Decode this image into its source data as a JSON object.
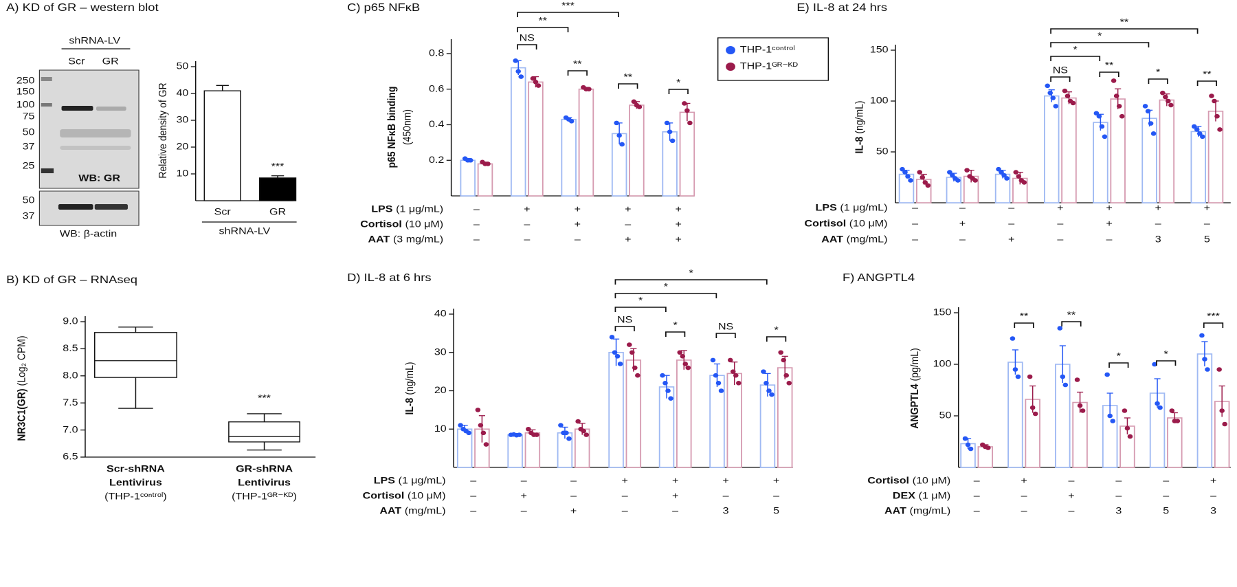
{
  "blot": {
    "header": "shRNA-LV",
    "lanes": [
      "Scr",
      "GR"
    ],
    "markers": [
      "250",
      "150",
      "100",
      "75",
      "50",
      "37",
      "25"
    ],
    "probe": "WB: GR",
    "markers_lower": [
      "50",
      "37"
    ],
    "probe_lower": "WB: β-actin"
  },
  "chart_data": [
    {
      "type": "bar",
      "title": "A) KD of GR – western blot",
      "ylabel": "Relative density of GR",
      "xlabel": "shRNA-LV",
      "categories": [
        "Scr",
        "GR"
      ],
      "values": [
        41,
        8.5
      ],
      "errors": [
        2,
        0.8
      ],
      "colors": [
        "#ffffff",
        "#000000"
      ],
      "ylim": [
        0,
        50
      ],
      "yticks": [
        10,
        20,
        30,
        40,
        50
      ],
      "annotations": [
        "***"
      ]
    },
    {
      "type": "box",
      "title": "B) KD of GR – RNAseq",
      "ylabel": "NR3C1(GR)",
      "ylabel_unit": "(Log₂ CPM)",
      "categories": [
        [
          "Scr-shRNA",
          "Lentivirus",
          "(THP-1ᶜᵒⁿᵗʳᵒˡ)"
        ],
        [
          "GR-shRNA",
          "Lentivirus",
          "(THP-1ᴳᴿ⁻ᴷᴰ)"
        ]
      ],
      "min": [
        7.4,
        6.63
      ],
      "q1": [
        7.97,
        6.78
      ],
      "median": [
        8.28,
        6.88
      ],
      "q3": [
        8.8,
        7.15
      ],
      "max": [
        8.9,
        7.3
      ],
      "ylim": [
        6.5,
        9.0
      ],
      "yticks": [
        6.5,
        {
          "value": 7,
          "label": "7.0"
        },
        7.5,
        {
          "value": 8,
          "label": "8.0"
        },
        8.5,
        {
          "value": 9,
          "label": "9.0"
        }
      ],
      "annotations": [
        "***"
      ]
    },
    {
      "type": "grouped_bar",
      "title": "C) p65 NFκB",
      "ylabel": "p65 NFκB binding",
      "ylabel_unit": "(450nm)",
      "ylim": [
        0,
        0.85
      ],
      "yticks": [
        0.2,
        0.4,
        0.6,
        0.8
      ],
      "series": [
        {
          "color": "#2457f5",
          "bar_color": "#9fb9f3",
          "values": [
            0.2,
            0.72,
            0.43,
            0.35,
            0.36
          ],
          "errors": [
            0.01,
            0.04,
            0.01,
            0.06,
            0.05
          ],
          "points": [
            [
              0.21,
              0.2,
              0.2
            ],
            [
              0.76,
              0.7,
              0.67
            ],
            [
              0.44,
              0.43,
              0.42
            ],
            [
              0.41,
              0.34,
              0.29
            ],
            [
              0.41,
              0.36,
              0.31
            ]
          ]
        },
        {
          "color": "#9b1b4b",
          "bar_color": "#d69bb1",
          "values": [
            0.18,
            0.64,
            0.6,
            0.51,
            0.47
          ],
          "errors": [
            0.01,
            0.03,
            0.01,
            0.02,
            0.05
          ],
          "points": [
            [
              0.19,
              0.18,
              0.18
            ],
            [
              0.66,
              0.64,
              0.62
            ],
            [
              0.61,
              0.6,
              0.6
            ],
            [
              0.53,
              0.51,
              0.5
            ],
            [
              0.52,
              0.48,
              0.41
            ]
          ]
        }
      ],
      "conditions": [
        {
          "name": "LPS",
          "unit": "(1 μg/mL)",
          "values": [
            "–",
            "+",
            "+",
            "+",
            "+"
          ]
        },
        {
          "name": "Cortisol",
          "unit": "(10 μM)",
          "values": [
            "–",
            "–",
            "+",
            "–",
            "+"
          ]
        },
        {
          "name": "AAT",
          "unit": "(3 mg/mL)",
          "values": [
            "–",
            "–",
            "–",
            "+",
            "+"
          ]
        }
      ],
      "annotations": [
        "NS",
        "**",
        "**",
        "*",
        "**",
        "***"
      ]
    },
    {
      "type": "grouped_bar",
      "title": "D) IL-8 at 6 hrs",
      "ylabel": "IL-8",
      "ylabel_unit": "(ng/mL)",
      "ylim": [
        0,
        40
      ],
      "yticks": [
        10,
        20,
        30,
        40
      ],
      "series": [
        {
          "color": "#2457f5",
          "bar_color": "#9fb9f3",
          "values": [
            10,
            8.5,
            9,
            30,
            21,
            24,
            21.5
          ],
          "errors": [
            1,
            0.3,
            1.5,
            3.5,
            3,
            3,
            3
          ],
          "points": [
            [
              11,
              10,
              9.5,
              9
            ],
            [
              8.5,
              8.6,
              8.4,
              8.5
            ],
            [
              11,
              9,
              9,
              7.5
            ],
            [
              34,
              30,
              29,
              27
            ],
            [
              24,
              22,
              20,
              18
            ],
            [
              28,
              24,
              22,
              20
            ],
            [
              25,
              22,
              20,
              19
            ]
          ]
        },
        {
          "color": "#9b1b4b",
          "bar_color": "#d69bb1",
          "values": [
            10,
            9,
            10,
            28,
            28,
            24.5,
            26
          ],
          "errors": [
            3.5,
            0.8,
            1.5,
            3,
            2.5,
            3,
            3
          ],
          "points": [
            [
              15,
              11,
              9,
              6
            ],
            [
              10,
              9,
              8.5,
              8.5
            ],
            [
              12,
              10,
              9.5,
              8.5
            ],
            [
              32,
              30,
              26,
              24
            ],
            [
              30,
              29,
              27,
              26
            ],
            [
              28,
              25,
              24,
              22
            ],
            [
              30,
              28,
              24,
              22
            ]
          ]
        }
      ],
      "conditions": [
        {
          "name": "LPS",
          "unit": "(1 μg/mL)",
          "values": [
            "–",
            "–",
            "–",
            "+",
            "+",
            "+",
            "+"
          ]
        },
        {
          "name": "Cortisol",
          "unit": "(10 μM)",
          "values": [
            "–",
            "+",
            "–",
            "–",
            "+",
            "–",
            "–"
          ]
        },
        {
          "name": "AAT",
          "unit": "(mg/mL)",
          "values": [
            "–",
            "–",
            "+",
            "–",
            "–",
            "3",
            "5"
          ]
        }
      ],
      "annotations": [
        "NS",
        "*",
        "NS",
        "*",
        "*",
        "*",
        "*"
      ]
    },
    {
      "type": "grouped_bar",
      "title": "E) IL-8 at 24 hrs",
      "ylabel": "IL-8",
      "ylabel_unit": "(ng/mL)",
      "ylim": [
        0,
        150
      ],
      "yticks": [
        50,
        100,
        150
      ],
      "series": [
        {
          "name": "THP-1ᶜᵒⁿᵗʳᵒˡ",
          "color": "#2457f5",
          "bar_color": "#9fb9f3",
          "values": [
            28,
            25,
            28,
            105,
            79,
            83,
            70
          ],
          "errors": [
            4,
            4,
            4,
            6,
            8,
            8,
            5
          ],
          "points": [
            [
              33,
              30,
              26,
              22
            ],
            [
              30,
              27,
              24,
              22
            ],
            [
              33,
              30,
              27,
              24
            ],
            [
              115,
              108,
              103,
              95
            ],
            [
              88,
              85,
              75,
              65
            ],
            [
              95,
              90,
              78,
              68
            ],
            [
              75,
              72,
              68,
              65
            ]
          ]
        },
        {
          "name": "THP-1ᴳᴿ⁻ᴷᴰ",
          "color": "#9b1b4b",
          "bar_color": "#d69bb1",
          "values": [
            23,
            26,
            24,
            103,
            102,
            101,
            90
          ],
          "errors": [
            5,
            6,
            6,
            6,
            10,
            6,
            10
          ],
          "points": [
            [
              30,
              25,
              20,
              17
            ],
            [
              32,
              26,
              24,
              22
            ],
            [
              30,
              26,
              22,
              20
            ],
            [
              110,
              105,
              100,
              98
            ],
            [
              120,
              105,
              95,
              85
            ],
            [
              108,
              104,
              100,
              96
            ],
            [
              105,
              100,
              85,
              72
            ]
          ]
        }
      ],
      "conditions": [
        {
          "name": "LPS",
          "unit": "(1 μg/mL)",
          "values": [
            "–",
            "–",
            "–",
            "+",
            "+",
            "+",
            "+"
          ]
        },
        {
          "name": "Cortisol",
          "unit": "(10 μM)",
          "values": [
            "–",
            "+",
            "–",
            "–",
            "+",
            "–",
            "–"
          ]
        },
        {
          "name": "AAT",
          "unit": "(mg/mL)",
          "values": [
            "–",
            "–",
            "+",
            "–",
            "–",
            "3",
            "5"
          ]
        }
      ],
      "annotations": [
        "NS",
        "**",
        "*",
        "**",
        "*",
        "*",
        "**"
      ]
    },
    {
      "type": "grouped_bar",
      "title": "F) ANGPTL4",
      "ylabel": "ANGPTL4",
      "ylabel_unit": "(pg/mL)",
      "ylim": [
        0,
        150
      ],
      "yticks": [
        50,
        100,
        150
      ],
      "series": [
        {
          "color": "#2457f5",
          "bar_color": "#9fb9f3",
          "values": [
            23,
            102,
            100,
            60,
            72,
            110
          ],
          "errors": [
            5,
            12,
            18,
            12,
            14,
            12
          ],
          "points": [
            [
              28,
              22,
              18
            ],
            [
              125,
              95,
              88
            ],
            [
              135,
              88,
              80
            ],
            [
              90,
              50,
              45
            ],
            [
              100,
              62,
              58
            ],
            [
              128,
              105,
              95
            ]
          ]
        },
        {
          "color": "#9b1b4b",
          "bar_color": "#d69bb1",
          "values": [
            20,
            66,
            63,
            40,
            48,
            64
          ],
          "errors": [
            2,
            13,
            10,
            8,
            5,
            15
          ],
          "points": [
            [
              22,
              20,
              19
            ],
            [
              88,
              58,
              52
            ],
            [
              85,
              60,
              55
            ],
            [
              55,
              38,
              30
            ],
            [
              55,
              45,
              45
            ],
            [
              95,
              55,
              42
            ]
          ]
        }
      ],
      "conditions": [
        {
          "name": "Cortisol",
          "unit": "(10 μM)",
          "values": [
            "–",
            "+",
            "–",
            "–",
            "–",
            "+"
          ]
        },
        {
          "name": "DEX",
          "unit": "(1 μM)",
          "values": [
            "–",
            "–",
            "+",
            "–",
            "–",
            "–"
          ]
        },
        {
          "name": "AAT",
          "unit": "(mg/mL)",
          "values": [
            "–",
            "–",
            "–",
            "3",
            "5",
            "3"
          ]
        }
      ],
      "annotations": [
        "**",
        "**",
        "*",
        "*",
        "***"
      ]
    }
  ]
}
